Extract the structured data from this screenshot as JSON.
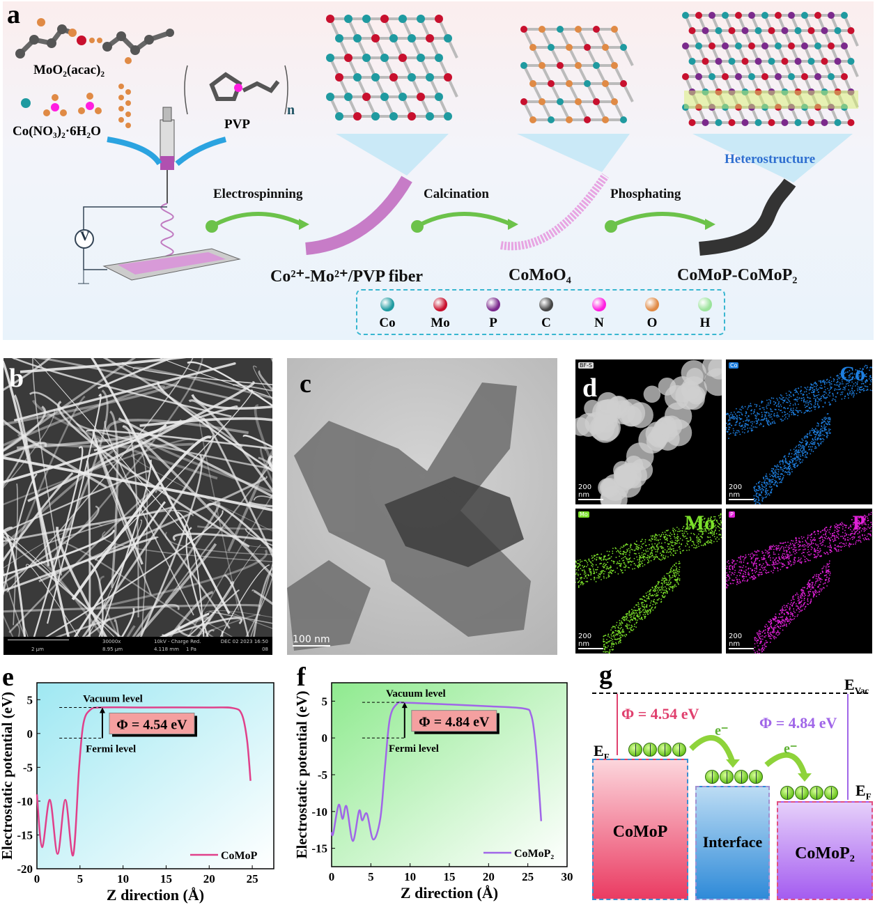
{
  "panel_a": {
    "label": "a",
    "precursor_1": "MoO₂(acac)₂",
    "precursor_2": "Co(NO₃)₂·6H₂O",
    "polymer": "PVP",
    "polymer_repeat": "n",
    "voltage": "V",
    "steps": [
      "Electrospinning",
      "Calcination",
      "Phosphating"
    ],
    "products": [
      "Co²⁺-Mo²⁺/PVP fiber",
      "CoMoO₄",
      "CoMoP-CoMoP₂"
    ],
    "heterostructure": "Heterostructure",
    "legend": [
      {
        "label": "Co",
        "color": "#1f9aa0"
      },
      {
        "label": "Mo",
        "color": "#c8102e"
      },
      {
        "label": "P",
        "color": "#7b2a8c"
      },
      {
        "label": "C",
        "color": "#444444"
      },
      {
        "label": "N",
        "color": "#ff1ee0"
      },
      {
        "label": "O",
        "color": "#e08a45"
      },
      {
        "label": "H",
        "color": "#9be39b"
      }
    ]
  },
  "panel_b": {
    "label": "b",
    "scale_bar": "2 μm",
    "magnification": "30000x",
    "field": "8.95 μm",
    "voltage": "10kV - Charge Red.",
    "distance": "4.118 mm",
    "pressure": "1 Pa",
    "date": "DEC 02 2023 16:50",
    "frame": "08"
  },
  "panel_c": {
    "label": "c",
    "scale_bar": "100 nm"
  },
  "panel_d": {
    "label": "d",
    "maps": [
      {
        "tag": "BF-S",
        "name": "",
        "scale_bar": "200 nm",
        "color": "#ffffff"
      },
      {
        "tag": "Co",
        "name": "Co",
        "scale_bar": "200 nm",
        "color": "#1e7fe0"
      },
      {
        "tag": "Mo",
        "name": "Mo",
        "scale_bar": "200 nm",
        "color": "#7be02a"
      },
      {
        "tag": "P",
        "name": "P",
        "scale_bar": "200 nm",
        "color": "#e020d8"
      }
    ]
  },
  "chart_data": [
    {
      "panel": "e",
      "type": "line",
      "xlabel": "Z direction (Å)",
      "ylabel": "Electrostatic potential (eV)",
      "xlim": [
        0,
        27.5
      ],
      "ylim": [
        -20,
        7.5
      ],
      "xticks": [
        0,
        5,
        10,
        15,
        20,
        25
      ],
      "yticks": [
        -20,
        -15,
        -10,
        -5,
        0,
        5
      ],
      "series": [
        {
          "name": "CoMoP",
          "color": "#e0408a",
          "x": [
            0,
            0.6,
            1.5,
            2.4,
            3.3,
            4.2,
            4.9,
            5.4,
            6.2,
            7.5,
            12,
            20,
            22.8,
            23.8,
            24.4,
            24.8
          ],
          "y": [
            -9,
            -16.8,
            -9.8,
            -17.8,
            -9.8,
            -18,
            -5,
            1.5,
            3.5,
            3.85,
            3.85,
            3.85,
            3.75,
            2.8,
            -1,
            -7
          ]
        }
      ],
      "vacuum_level": 3.85,
      "fermi_level": -0.69,
      "level_xrange": [
        2.6,
        7.6
      ],
      "vacuum_label": "Vacuum level",
      "fermi_label": "Fermi level",
      "work_function": "Φ = 4.54 eV",
      "bg": "#9fe8f2"
    },
    {
      "panel": "f",
      "type": "line",
      "xlabel": "Z direction (Å)",
      "ylabel": "Electrostatic potential (eV)",
      "xlim": [
        0,
        30
      ],
      "ylim": [
        -17.5,
        7.5
      ],
      "xticks": [
        0,
        5,
        10,
        15,
        20,
        25,
        30
      ],
      "yticks": [
        -15,
        -10,
        -5,
        0,
        5
      ],
      "series": [
        {
          "name": "CoMoP₂",
          "color": "#a066e8",
          "x": [
            0,
            0.2,
            0.9,
            1.4,
            1.9,
            2.7,
            3.5,
            3.9,
            4.5,
            5.3,
            6.2,
            6.8,
            7.4,
            8.3,
            9.5,
            15,
            20,
            24.5,
            25.4,
            25.9,
            26.3,
            26.7
          ],
          "y": [
            -12.8,
            -13,
            -9.1,
            -11,
            -9.3,
            -14,
            -9.9,
            -11.2,
            -10.3,
            -13.8,
            -11,
            -4,
            2.5,
            4.6,
            4.78,
            4.55,
            4.3,
            4,
            3.2,
            0,
            -5,
            -11.3
          ]
        }
      ],
      "vacuum_level": 4.84,
      "fermi_level": 0,
      "level_xrange": [
        3.9,
        9.3
      ],
      "vacuum_label": "Vacuum level",
      "fermi_label": "Fermi level",
      "work_function": "Φ = 4.84 eV",
      "bg": "#8fea8f"
    }
  ],
  "panel_g": {
    "label": "g",
    "evac": "E",
    "evac_sub": "Vac",
    "ef": "E",
    "ef_sub": "F",
    "phi_1": "Φ = 4.54 eV",
    "phi_2": "Φ = 4.84 eV",
    "electron": "e⁻",
    "blocks": [
      "CoMoP",
      "Interface",
      "CoMoP₂"
    ],
    "phi_1_color": "#e0406e",
    "phi_2_color": "#a066e8"
  }
}
